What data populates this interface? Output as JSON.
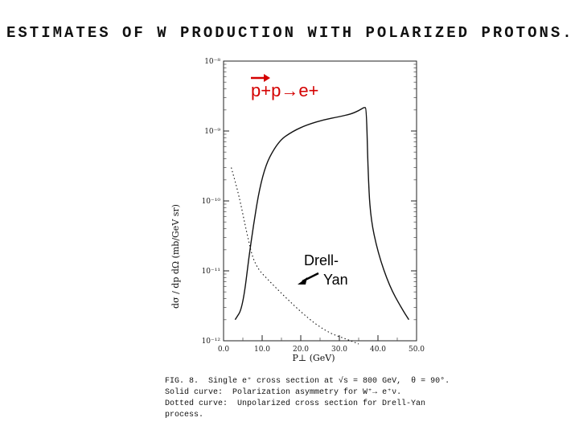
{
  "header": {
    "title": "ESTIMATES OF W PRODUCTION WITH POLARIZED PROTONS..."
  },
  "annotations": {
    "reaction": "p+p→e+",
    "dy_line1": "Drell-",
    "dy_line2": "Yan"
  },
  "caption": {
    "line1": "FIG. 8.  Single e⁺ cross section at √s = 800 GeV,  θ = 90°.",
    "line2": "Solid curve:  Polarization asymmetry for W⁺→ e⁺ν.",
    "line3": "Dotted curve:  Unpolarized cross section for Drell-Yan",
    "line4": "process."
  },
  "chart_data": {
    "type": "line",
    "title": "",
    "xlabel": "P⊥ (GeV)",
    "ylabel": "dσ / dp dΩ  (mb/GeV sr)",
    "yscale": "log",
    "xlim": [
      0,
      50
    ],
    "ylim": [
      1e-12,
      1e-08
    ],
    "x_ticks": [
      "0.0",
      "10.0",
      "20.0",
      "30.0",
      "40.0",
      "50.0"
    ],
    "y_ticks": [
      "10⁻¹²",
      "10⁻¹¹",
      "10⁻¹⁰",
      "10⁻⁹",
      "10⁻⁸"
    ],
    "grid": false,
    "series": [
      {
        "style": "solid",
        "x": [
          3,
          5,
          7,
          10,
          14,
          18,
          22,
          26,
          30,
          33,
          35,
          36.5,
          37,
          37.4,
          38,
          40,
          43,
          46,
          48
        ],
        "y": [
          2e-12,
          3e-12,
          2.5e-11,
          2.6e-10,
          7e-10,
          1e-09,
          1.25e-09,
          1.45e-09,
          1.6e-09,
          1.75e-09,
          1.95e-09,
          2.2e-09,
          2.1e-09,
          3e-10,
          6e-11,
          1.8e-11,
          6e-12,
          3e-12,
          2e-12
        ]
      },
      {
        "style": "dotted",
        "x": [
          2,
          4,
          6,
          8,
          12,
          16,
          20,
          24,
          28,
          32,
          35
        ],
        "y": [
          3e-10,
          1.2e-10,
          3.5e-11,
          1.2e-11,
          7e-12,
          4.2e-12,
          2.6e-12,
          1.7e-12,
          1.25e-12,
          1.05e-12,
          9e-13
        ]
      }
    ]
  },
  "colors": {
    "annotation_red": "#d40000",
    "ink": "#111111"
  }
}
